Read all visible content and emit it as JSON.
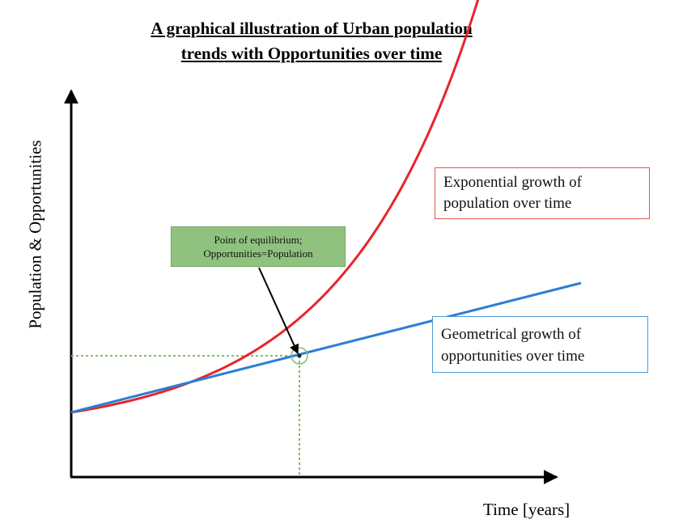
{
  "chart_data": {
    "type": "line",
    "title": "A graphical illustration of Urban population trends with Opportunities over time",
    "title_lines": [
      "A graphical illustration of Urban population",
      "trends with Opportunities over time"
    ],
    "xlabel": "Time [years]",
    "ylabel": "Population & Opportunities",
    "x_ticks": false,
    "y_ticks": false,
    "grid": false,
    "series": [
      {
        "key": "population",
        "color": "#e8242a",
        "shape": "exponential",
        "x": [
          0,
          0.1,
          0.2,
          0.3,
          0.4,
          0.5,
          0.6,
          0.7,
          0.75,
          0.8,
          0.85,
          0.9
        ],
        "y": [
          0.16,
          0.163,
          0.175,
          0.2,
          0.24,
          0.3,
          0.4,
          0.57,
          0.7,
          0.88,
          1.1,
          1.45
        ]
      },
      {
        "key": "opportunities",
        "color": "#2b7fd3",
        "shape": "linear",
        "x": [
          0,
          1.05
        ],
        "y": [
          0.16,
          0.48
        ]
      }
    ],
    "equilibrium": {
      "x": 0.47,
      "y": 0.3,
      "marker_color": "#7fbf6a"
    },
    "annotations": [
      {
        "key": "exp",
        "lines": [
          "Exponential growth of",
          "population over time"
        ],
        "border_color": "#e8554f"
      },
      {
        "key": "geo",
        "lines": [
          "Geometrical growth of",
          "opportunities over time"
        ],
        "border_color": "#4b9bd6"
      },
      {
        "key": "eq",
        "lines": [
          "Point of equilibrium;",
          "Opportunities=Population"
        ],
        "fill_color": "#8fc27f"
      }
    ]
  }
}
